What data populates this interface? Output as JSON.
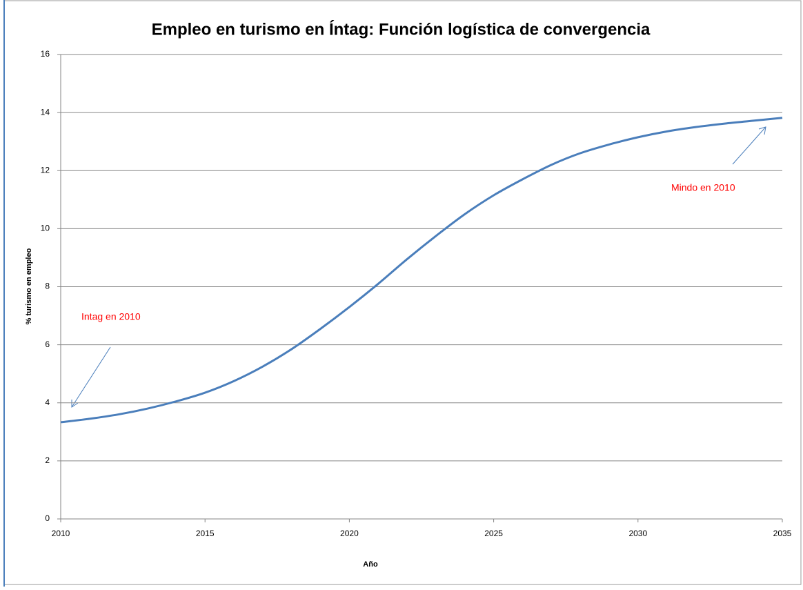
{
  "chart_data": {
    "type": "line",
    "title": "Empleo en turismo en Íntag: Función logística de convergencia",
    "xlabel": "Año",
    "ylabel": "% turismo en empleo",
    "x": [
      2010,
      2011,
      2012,
      2013,
      2014,
      2015,
      2016,
      2017,
      2018,
      2019,
      2020,
      2021,
      2022,
      2023,
      2024,
      2025,
      2026,
      2027,
      2028,
      2029,
      2030,
      2031,
      2032,
      2033,
      2034,
      2035
    ],
    "series": [
      {
        "name": "Empleo en turismo",
        "color": "#4a7ebb",
        "values": [
          3.33,
          3.45,
          3.6,
          3.8,
          4.05,
          4.35,
          4.75,
          5.25,
          5.85,
          6.55,
          7.3,
          8.1,
          8.95,
          9.75,
          10.5,
          11.15,
          11.7,
          12.2,
          12.6,
          12.9,
          13.15,
          13.35,
          13.5,
          13.62,
          13.72,
          13.82
        ]
      }
    ],
    "xlim": [
      2010,
      2035
    ],
    "xticks": [
      2010,
      2015,
      2020,
      2025,
      2030,
      2035
    ],
    "ylim": [
      0,
      16
    ],
    "yticks": [
      0,
      2,
      4,
      6,
      8,
      10,
      12,
      14,
      16
    ],
    "grid": true,
    "annotations": [
      "Intag en 2010",
      "Mindo en 2010"
    ]
  }
}
